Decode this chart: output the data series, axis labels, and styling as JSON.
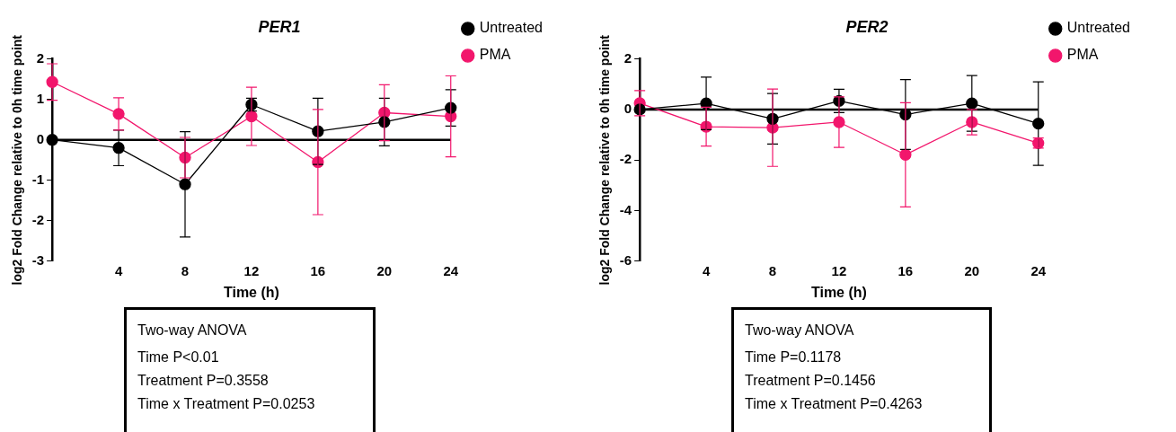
{
  "chart_data": [
    {
      "type": "line",
      "title": "PER1",
      "xlabel": "Time (h)",
      "ylabel": "log2 Fold Change relative to 0h time point",
      "x": [
        0,
        4,
        8,
        12,
        16,
        20,
        24
      ],
      "xlim": [
        0,
        24
      ],
      "xticks": [
        4,
        8,
        12,
        16,
        20,
        24
      ],
      "ylim": [
        -3,
        2
      ],
      "yticks": [
        -3,
        -2,
        -1,
        0,
        1,
        2
      ],
      "series": [
        {
          "name": "Untreated",
          "color": "#000000",
          "values": [
            0,
            -0.2,
            -1.1,
            0.87,
            0.21,
            0.44,
            0.79
          ],
          "errors": [
            null,
            0.44,
            1.3,
            0.16,
            0.82,
            0.59,
            0.45
          ]
        },
        {
          "name": "PMA",
          "color": "#f2166c",
          "values": [
            1.43,
            0.64,
            -0.44,
            0.58,
            -0.55,
            0.67,
            0.58
          ],
          "errors": [
            0.45,
            0.4,
            0.5,
            0.72,
            1.3,
            0.69,
            1.0
          ]
        }
      ],
      "marker": "circle",
      "line_style": "solid",
      "grid": false,
      "legend": "top right",
      "ref_lines": [
        {
          "axis": "y",
          "value": 0,
          "color": "#000000"
        }
      ],
      "annotations": [
        "Two-way ANOVA",
        "Time P<0.01",
        "Treatment P=0.3558",
        "Time x Treatment P=0.0253"
      ]
    },
    {
      "type": "line",
      "title": "PER2",
      "xlabel": "Time (h)",
      "ylabel": "log2 Fold Change relative to 0h time point",
      "x": [
        0,
        4,
        8,
        12,
        16,
        20,
        24
      ],
      "xlim": [
        0,
        24
      ],
      "xticks": [
        4,
        8,
        12,
        16,
        20,
        24
      ],
      "ylim": [
        -6,
        2
      ],
      "yticks": [
        -6,
        -4,
        -2,
        0,
        2
      ],
      "series": [
        {
          "name": "Untreated",
          "color": "#000000",
          "values": [
            0,
            0.24,
            -0.37,
            0.34,
            -0.2,
            0.24,
            -0.56
          ],
          "errors": [
            null,
            1.04,
            1.0,
            0.46,
            1.38,
            1.1,
            1.65
          ]
        },
        {
          "name": "PMA",
          "color": "#f2166c",
          "values": [
            0.25,
            -0.68,
            -0.72,
            -0.5,
            -1.79,
            -0.5,
            -1.33
          ],
          "errors": [
            0.5,
            0.77,
            1.53,
            1.0,
            2.06,
            0.5,
            0.2
          ]
        }
      ],
      "marker": "circle",
      "line_style": "solid",
      "grid": false,
      "legend": "top right",
      "ref_lines": [
        {
          "axis": "y",
          "value": 0,
          "color": "#000000"
        }
      ],
      "annotations": [
        "Two-way ANOVA",
        "Time P=0.1178",
        "Treatment P=0.1456",
        "Time x Treatment P=0.4263"
      ]
    }
  ]
}
